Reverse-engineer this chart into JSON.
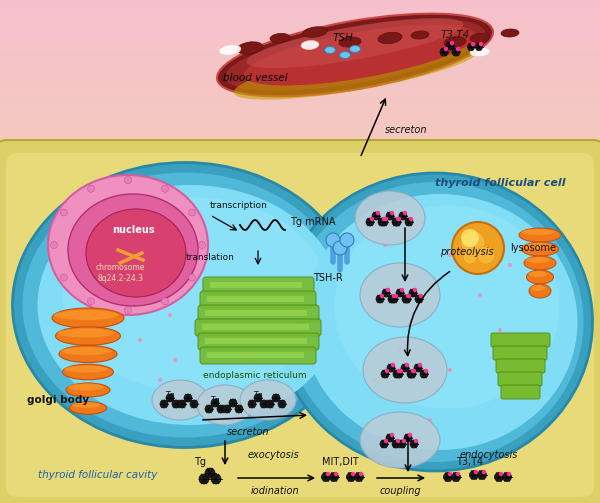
{
  "bg_top": "#f5c0cc",
  "bg_bottom": "#f0e0a0",
  "cavity_color": "#e8d870",
  "cavity_edge": "#c8b840",
  "cell_outer": "#45b8d0",
  "cell_mid": "#5ccce0",
  "cell_inner": "#80ddf0",
  "nucleus_outer": "#e87db5",
  "nucleus_mid": "#e85090",
  "nucleus_core": "#d03060",
  "golgi_color": "#f07818",
  "golgi_dark": "#c05010",
  "er_color": "#78bb30",
  "er_dark": "#4a8a10",
  "lysosome_color": "#f0a020",
  "lysosome_shine": "#ffe060",
  "blood_outer": "#7a1a1a",
  "blood_mid": "#9a2828",
  "blood_inner": "#b83030",
  "blood_highlight": "#cc5050",
  "rbc_color": "#7a1818",
  "rbc_dark": "#5a1010",
  "tsh_receptor": "#60b0e0",
  "vesicle_fill": "#b8ccd8",
  "vesicle_edge": "#88aac0",
  "pink_dot": "#ff80b0",
  "mol_color": "#202020",
  "pink_mol": "#ff3090",
  "labels": {
    "blood_vessel": "blood vessel",
    "tsh": "TSH",
    "t3t4_blood": "T3,T4",
    "secreton": "secreton",
    "nucleus": "nucleus",
    "chromosome": "chromosome\n8q24.2-24.3",
    "transcription": "transcription",
    "tg_mrna": "Tg mRNA",
    "translation": "translation",
    "er": "endoplasmic reticulum",
    "golgi": "golgi body",
    "secreton2": "secreton",
    "exocytosis": "exocytosis",
    "tg_label": "Tg",
    "iodination": "iodination",
    "mitdit": "MIT,DIT",
    "coupling": "coupling",
    "t3t4": "T3,T4",
    "cavity": "thyroid follicular cavity",
    "tsh_r": "TSH-R",
    "proteolysis": "proteolysis",
    "lysosome": "lysosome",
    "endocytosis": "endocytosis",
    "follicular_cell": "thyroid follicular cell"
  }
}
